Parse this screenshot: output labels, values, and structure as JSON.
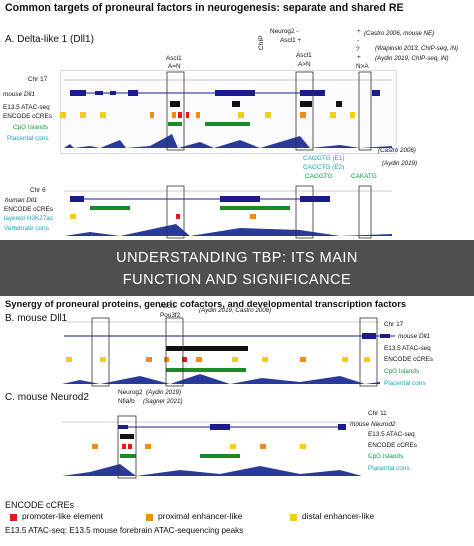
{
  "title": "Common targets of proneural factors in neurogenesis: separate and shared RE",
  "panelA": {
    "label": "A.  Delta-like 1 (Dll1)",
    "chip": "ChIP",
    "neurog2": "Neurog2  -",
    "ascl1_pm": "Ascl1  +",
    "plus": "+",
    "dash": "-",
    "qmark": "?",
    "plus2": "+",
    "cite1": "(Castro 2006, mouse NE)",
    "cite2": "(Wapinski 2013, ChIP-seq, iN)",
    "cite3": "(Aydin 2019, ChIP-seq, iN)",
    "ascl1_left": "Ascl1",
    "an_left": "A=N",
    "ascl1_right": "Ascl1",
    "an_right": "A>N",
    "na": "N>A",
    "chr": "Chr 17",
    "gene": "mouse Dll1",
    "atac": "E13.5 ATAC-seq",
    "ccres": "ENCODE cCREs",
    "cpg": "CpG Islands",
    "cons": "Placental cons",
    "motif1": "CAGGTG (E1)",
    "motif2": "CAGCTG (E2)",
    "motif3": "CAGGTG",
    "motif4": "CAKATG",
    "cite4": "(Castro 2006)",
    "cite5": "(Aydin 2019)",
    "chr6": "Chr 6",
    "gene_h": "human Dll1",
    "encode_h": "ENCODE cCREs",
    "h3k27": "layered H3K27ac",
    "vert": "Vertebrate cons"
  },
  "synergy": "Synergy of proneural proteins, generic cofactors, and developmental transcription factors",
  "panelB": {
    "label": "B.  mouse Dll1",
    "ascl1": "Ascl1",
    "pou3f2": "Pou3f2",
    "cite": "(Aydin 2019, Castro 2006)",
    "chr": "Chr 17",
    "gene": "mouse Dll1",
    "atac": "E13.5 ATAC-seq",
    "ccres": "ENCODE cCREs",
    "cpg": "CpG Islands",
    "cons": "Placental cons"
  },
  "panelC": {
    "label": "C.  mouse Neurod2",
    "neurog2": "Neurog2",
    "cite1": "(Aydin 2019)",
    "nfiab": "Nfia/b",
    "cite2": "(Sagner 2021)",
    "chr": "Chr 11",
    "gene": "mouse Neurod2",
    "atac": "E13.5 ATAC-seq",
    "ccres": "ENCODE cCREs",
    "cpg": "CpG Islands",
    "cons": "Placental cons"
  },
  "legend": {
    "title": "ENCODE cCREs",
    "promoter": "promoter-like element",
    "proximal": "proximal enhancer-like",
    "distal": "distal enhancer-like",
    "atac": "E13.5 ATAC-seq: E13.5 mouse forebrain ATAC-sequencing peaks"
  },
  "overlay": {
    "line1": "UNDERSTANDING TBP: ITS MAIN",
    "line2": "FUNCTION AND SIGNIFICANCE"
  },
  "colors": {
    "promoter": "#e01b1b",
    "proximal": "#f08c1a",
    "distal": "#f4cc1e",
    "cpg": "#1a8a2a",
    "gene": "#1b1b8c",
    "cons": "#2a3a9a",
    "cyan": "#1aa3b8"
  }
}
